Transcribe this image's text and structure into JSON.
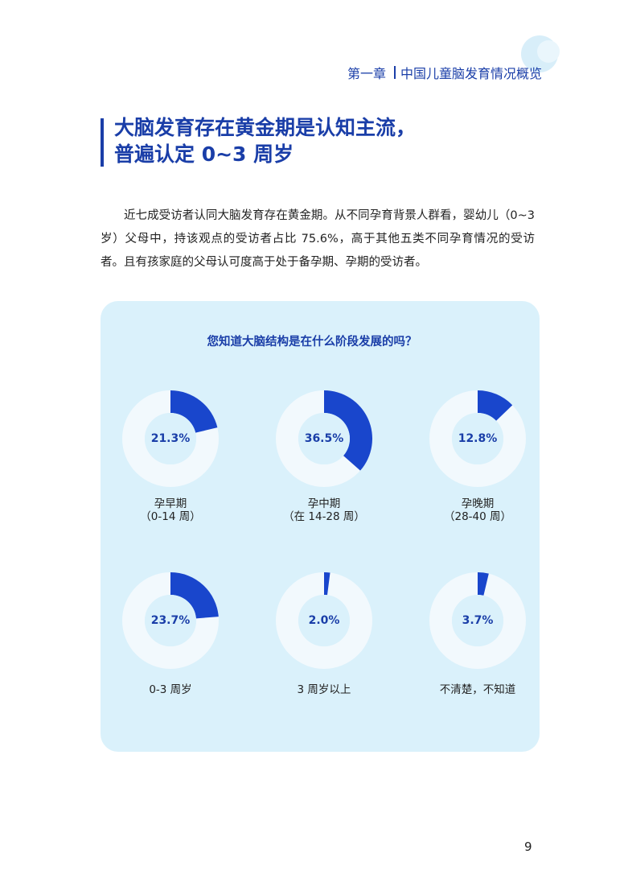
{
  "header": {
    "chapter": "第一章",
    "section": "中国儿童脑发育情况概览"
  },
  "title": {
    "line1": "大脑发育存在黄金期是认知主流，",
    "line2": "普遍认定 0~3 周岁"
  },
  "body": {
    "paragraph": "近七成受访者认同大脑发育存在黄金期。从不同孕育背景人群看，婴幼儿（0~3 岁）父母中，持该观点的受访者占比 75.6%，高于其他五类不同孕育情况的受访者。且有孩家庭的父母认可度高于处于备孕期、孕期的受访者。"
  },
  "chart_data": {
    "type": "pie",
    "title": "您知道大脑结构是在什么阶段发展的吗？",
    "unit": "%",
    "colors": {
      "filled": "#1946cc",
      "track": "#f2f9fd",
      "panel": "#daf1fb",
      "value_text": "#1a3ea8"
    },
    "items": [
      {
        "value": 21.3,
        "display": "21.3%",
        "label_lines": [
          "孕早期",
          "（0-14 周）"
        ]
      },
      {
        "value": 36.5,
        "display": "36.5%",
        "label_lines": [
          "孕中期",
          "（在 14-28 周）"
        ]
      },
      {
        "value": 12.8,
        "display": "12.8%",
        "label_lines": [
          "孕晚期",
          "（28-40 周）"
        ]
      },
      {
        "value": 23.7,
        "display": "23.7%",
        "label_lines": [
          "0-3 周岁"
        ]
      },
      {
        "value": 2.0,
        "display": "2.0%",
        "label_lines": [
          "3 周岁以上"
        ]
      },
      {
        "value": 3.7,
        "display": "3.7%",
        "label_lines": [
          "不清楚，不知道"
        ]
      }
    ]
  },
  "footer": {
    "page_number": "9"
  }
}
